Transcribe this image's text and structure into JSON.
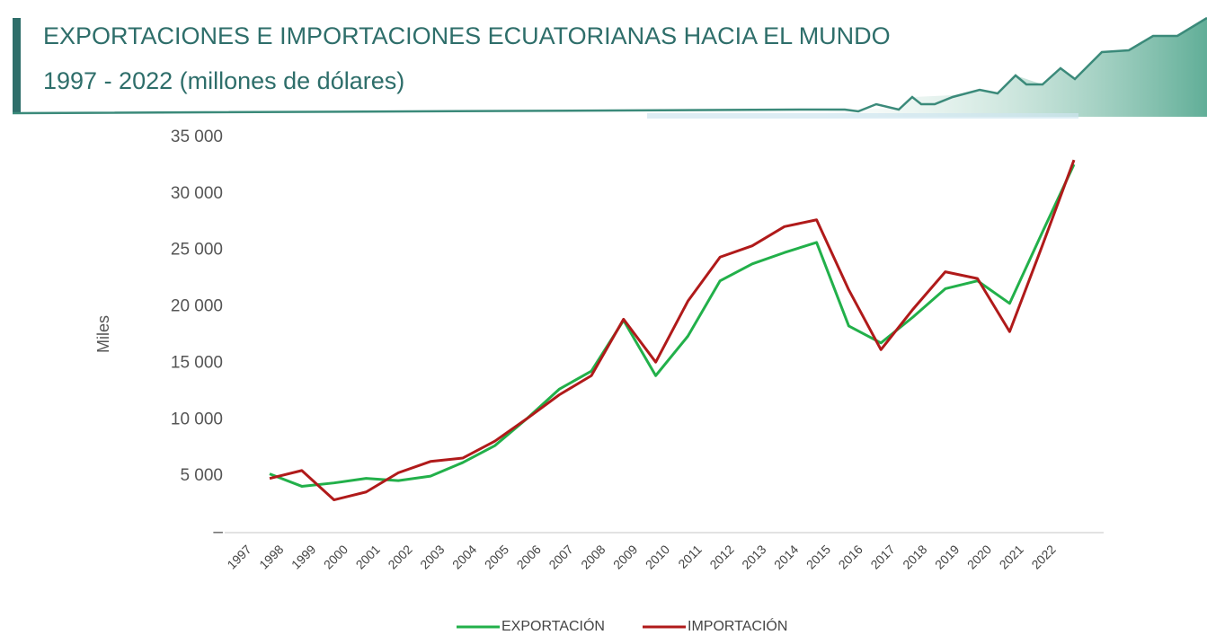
{
  "chart_data": {
    "type": "line",
    "title": "EXPORTACIONES E IMPORTACIONES ECUATORIANAS HACIA EL MUNDO",
    "subtitle": "1997 - 2022 (millones de dólares)",
    "y_label": "Miles",
    "categories": [
      "1997",
      "1998",
      "1999",
      "2000",
      "2001",
      "2002",
      "2003",
      "2004",
      "2005",
      "2006",
      "2007",
      "2008",
      "2009",
      "2010",
      "2011",
      "2012",
      "2013",
      "2014",
      "2015",
      "2016",
      "2017",
      "2018",
      "2019",
      "2020",
      "2021",
      "2022"
    ],
    "series": [
      {
        "name": "EXPORTACIÓN",
        "color": "#22b04a",
        "values": [
          5200,
          4100,
          4400,
          4800,
          4600,
          5000,
          6200,
          7700,
          10100,
          12700,
          14300,
          18800,
          13900,
          17400,
          22300,
          23800,
          24800,
          25700,
          18300,
          16800,
          19100,
          21600,
          22300,
          20300,
          26500,
          32600
        ]
      },
      {
        "name": "IMPORTACIÓN",
        "color": "#b01a1a",
        "values": [
          4800,
          5500,
          2900,
          3600,
          5300,
          6300,
          6600,
          8100,
          10100,
          12200,
          13900,
          18900,
          15100,
          20500,
          24400,
          25400,
          27100,
          27700,
          21500,
          16200,
          19800,
          23100,
          22500,
          17800,
          25300,
          33000
        ]
      }
    ],
    "ylim": [
      0,
      35000
    ],
    "yticks": [
      {
        "value": 0,
        "label": "–"
      },
      {
        "value": 5000,
        "label": "5 000"
      },
      {
        "value": 10000,
        "label": "10 000"
      },
      {
        "value": 15000,
        "label": "15 000"
      },
      {
        "value": 20000,
        "label": "20 000"
      },
      {
        "value": 25000,
        "label": "25 000"
      },
      {
        "value": 30000,
        "label": "30 000"
      },
      {
        "value": 35000,
        "label": "35 000"
      }
    ],
    "grid": false,
    "legend": "bottom"
  }
}
